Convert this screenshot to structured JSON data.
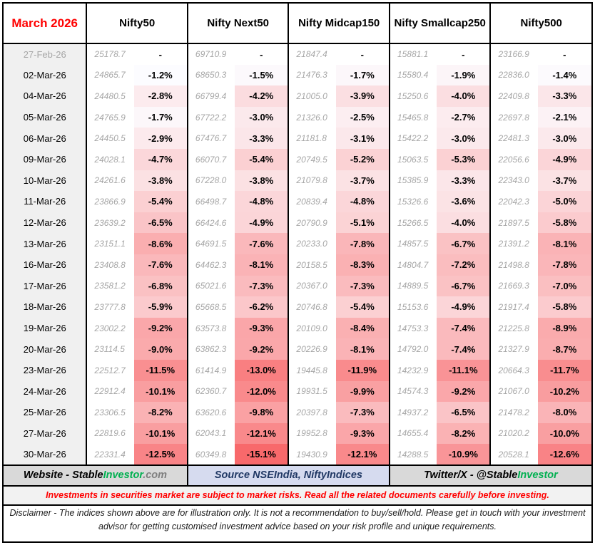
{
  "header": {
    "title": "March 2026"
  },
  "chart_data": {
    "type": "table",
    "title": "March 2026",
    "columns": [
      "Nifty50",
      "Nifty Next50",
      "Nifty Midcap150",
      "Nifty Smallcap250",
      "Nifty500"
    ],
    "subcolumns": [
      "close_value",
      "pct_change"
    ],
    "baseline_note": "27-Feb-26 row is baseline with no % change (-)",
    "rows": [
      {
        "date": "27-Feb-26",
        "muted": true,
        "values": [
          "25178.7",
          "69710.9",
          "21847.4",
          "15881.1",
          "23166.9"
        ],
        "pcts": [
          null,
          null,
          null,
          null,
          null
        ]
      },
      {
        "date": "02-Mar-26",
        "values": [
          "24865.7",
          "68650.3",
          "21476.3",
          "15580.4",
          "22836.0"
        ],
        "pcts": [
          -1.2,
          -1.5,
          -1.7,
          -1.9,
          -1.4
        ]
      },
      {
        "date": "04-Mar-26",
        "values": [
          "24480.5",
          "66799.4",
          "21005.0",
          "15250.6",
          "22409.8"
        ],
        "pcts": [
          -2.8,
          -4.2,
          -3.9,
          -4.0,
          -3.3
        ]
      },
      {
        "date": "05-Mar-26",
        "values": [
          "24765.9",
          "67722.2",
          "21326.0",
          "15465.8",
          "22697.8"
        ],
        "pcts": [
          -1.7,
          -3.0,
          -2.5,
          -2.7,
          -2.1
        ]
      },
      {
        "date": "06-Mar-26",
        "values": [
          "24450.5",
          "67476.7",
          "21181.8",
          "15422.2",
          "22481.3"
        ],
        "pcts": [
          -2.9,
          -3.3,
          -3.1,
          -3.0,
          -3.0
        ]
      },
      {
        "date": "09-Mar-26",
        "values": [
          "24028.1",
          "66070.7",
          "20749.5",
          "15063.5",
          "22056.6"
        ],
        "pcts": [
          -4.7,
          -5.4,
          -5.2,
          -5.3,
          -4.9
        ]
      },
      {
        "date": "10-Mar-26",
        "values": [
          "24261.6",
          "67228.0",
          "21079.8",
          "15385.9",
          "22343.0"
        ],
        "pcts": [
          -3.8,
          -3.8,
          -3.7,
          -3.3,
          -3.7
        ]
      },
      {
        "date": "11-Mar-26",
        "values": [
          "23866.9",
          "66498.7",
          "20839.4",
          "15326.6",
          "22042.3"
        ],
        "pcts": [
          -5.4,
          -4.8,
          -4.8,
          -3.6,
          -5.0
        ]
      },
      {
        "date": "12-Mar-26",
        "values": [
          "23639.2",
          "66424.6",
          "20790.9",
          "15266.5",
          "21897.5"
        ],
        "pcts": [
          -6.5,
          -4.9,
          -5.1,
          -4.0,
          -5.8
        ]
      },
      {
        "date": "13-Mar-26",
        "values": [
          "23151.1",
          "64691.5",
          "20233.0",
          "14857.5",
          "21391.2"
        ],
        "pcts": [
          -8.6,
          -7.6,
          -7.8,
          -6.7,
          -8.1
        ]
      },
      {
        "date": "16-Mar-26",
        "values": [
          "23408.8",
          "64462.3",
          "20158.5",
          "14804.7",
          "21498.8"
        ],
        "pcts": [
          -7.6,
          -8.1,
          -8.3,
          -7.2,
          -7.8
        ]
      },
      {
        "date": "17-Mar-26",
        "values": [
          "23581.2",
          "65021.6",
          "20367.0",
          "14889.5",
          "21669.3"
        ],
        "pcts": [
          -6.8,
          -7.3,
          -7.3,
          -6.7,
          -7.0
        ]
      },
      {
        "date": "18-Mar-26",
        "values": [
          "23777.8",
          "65668.5",
          "20746.8",
          "15153.6",
          "21917.4"
        ],
        "pcts": [
          -5.9,
          -6.2,
          -5.4,
          -4.9,
          -5.8
        ]
      },
      {
        "date": "19-Mar-26",
        "values": [
          "23002.2",
          "63573.8",
          "20109.0",
          "14753.3",
          "21225.8"
        ],
        "pcts": [
          -9.2,
          -9.3,
          -8.4,
          -7.4,
          -8.9
        ]
      },
      {
        "date": "20-Mar-26",
        "values": [
          "23114.5",
          "63862.3",
          "20226.9",
          "14792.0",
          "21327.9"
        ],
        "pcts": [
          -9.0,
          -9.2,
          -8.1,
          -7.4,
          -8.7
        ]
      },
      {
        "date": "23-Mar-26",
        "values": [
          "22512.7",
          "61414.9",
          "19445.8",
          "14232.9",
          "20664.3"
        ],
        "pcts": [
          -11.5,
          -13.0,
          -11.9,
          -11.1,
          -11.7
        ]
      },
      {
        "date": "24-Mar-26",
        "values": [
          "22912.4",
          "62360.7",
          "19931.5",
          "14574.3",
          "21067.0"
        ],
        "pcts": [
          -10.1,
          -12.0,
          -9.9,
          -9.2,
          -10.2
        ]
      },
      {
        "date": "25-Mar-26",
        "values": [
          "23306.5",
          "63620.6",
          "20397.8",
          "14937.2",
          "21478.2"
        ],
        "pcts": [
          -8.2,
          -9.8,
          -7.3,
          -6.5,
          -8.0
        ]
      },
      {
        "date": "27-Mar-26",
        "values": [
          "22819.6",
          "62043.1",
          "19952.8",
          "14655.4",
          "21020.2"
        ],
        "pcts": [
          -10.1,
          -12.1,
          -9.3,
          -8.2,
          -10.0
        ]
      },
      {
        "date": "30-Mar-26",
        "values": [
          "22331.4",
          "60349.8",
          "19430.9",
          "14288.5",
          "20528.1"
        ],
        "pcts": [
          -12.5,
          -15.1,
          -12.1,
          -10.9,
          -12.6
        ]
      }
    ]
  },
  "heatmap": {
    "zero_color": "#FCFCFF",
    "max_color": "#F8696B",
    "scale_min_abs_pct": 1.2,
    "scale_max_abs_pct": 15.1
  },
  "colors": {
    "title_red": "#FF0000",
    "brand_green": "#00B050",
    "source_navy": "#203864",
    "footer_gray_bg": "#D9D9D9",
    "footer_blue_bg": "#D6DBEF",
    "date_col_bg": "#F0F0F0",
    "muted_text": "#A6A6A6"
  },
  "footer": {
    "website": {
      "black": "Website - Stable",
      "green": "Investor",
      "gray": ".com"
    },
    "source": "Source NSEIndia, NiftyIndices",
    "twitter": {
      "black": "Twitter/X - @Stable",
      "green": "Investor"
    },
    "warning": "Investments in securities market are subject to market risks. Read all the related documents carefully before investing.",
    "disclaimer_line1": "Disclaimer - The indices shown above are for illustration only. It is not a recommendation to buy/sell/hold. Please get in touch with your investment",
    "disclaimer_line2": "advisor for getting customised investment advice based on your risk profile and unique requirements."
  }
}
